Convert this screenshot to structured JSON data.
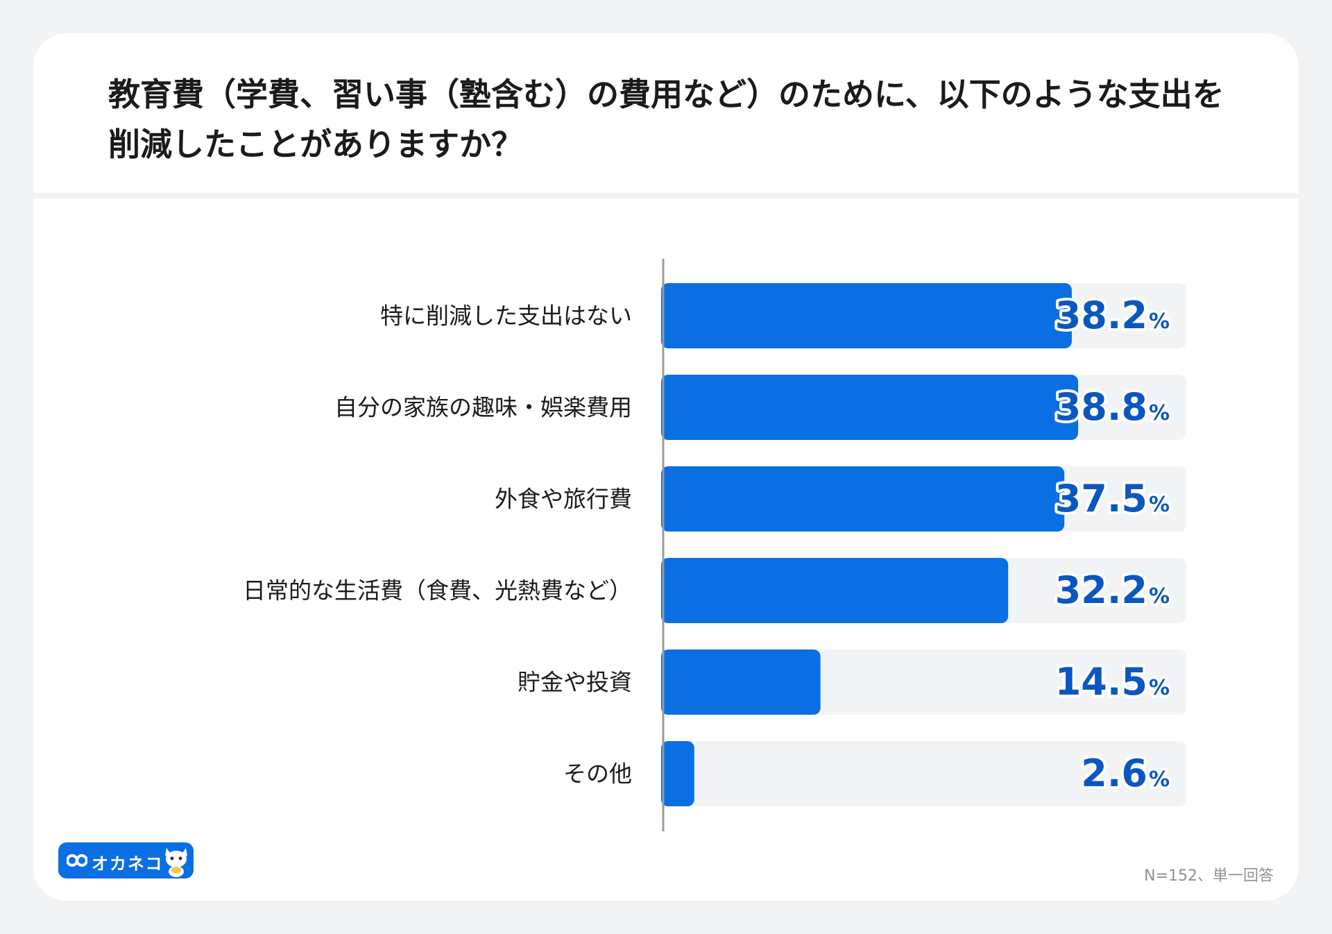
{
  "header": {
    "title_line1": "教育費（学費、習い事（塾含む）の費用など）のために、以下のような支出を",
    "title_line2": "削減したことがありますか？"
  },
  "chart_data": {
    "type": "bar",
    "orientation": "horizontal",
    "categories": [
      "特に削減した支出はない",
      "自分の家族の趣味・娯楽費用",
      "外食や旅行費",
      "日常的な生活費（食費、光熱費など）",
      "貯金や投資",
      "その他"
    ],
    "values": [
      38.2,
      38.8,
      37.5,
      32.2,
      14.5,
      2.6
    ],
    "value_labels": [
      "38.2",
      "38.8",
      "37.5",
      "32.2",
      "14.5",
      "2.6"
    ],
    "unit": "%",
    "xlim": [
      0,
      49
    ],
    "colors": {
      "bar": "#0a6fe3",
      "track": "#f2f3f5",
      "value_text": "#0a57c2"
    }
  },
  "footer": {
    "logo_text": "オカネコ",
    "note": "N=152、単一回答"
  }
}
